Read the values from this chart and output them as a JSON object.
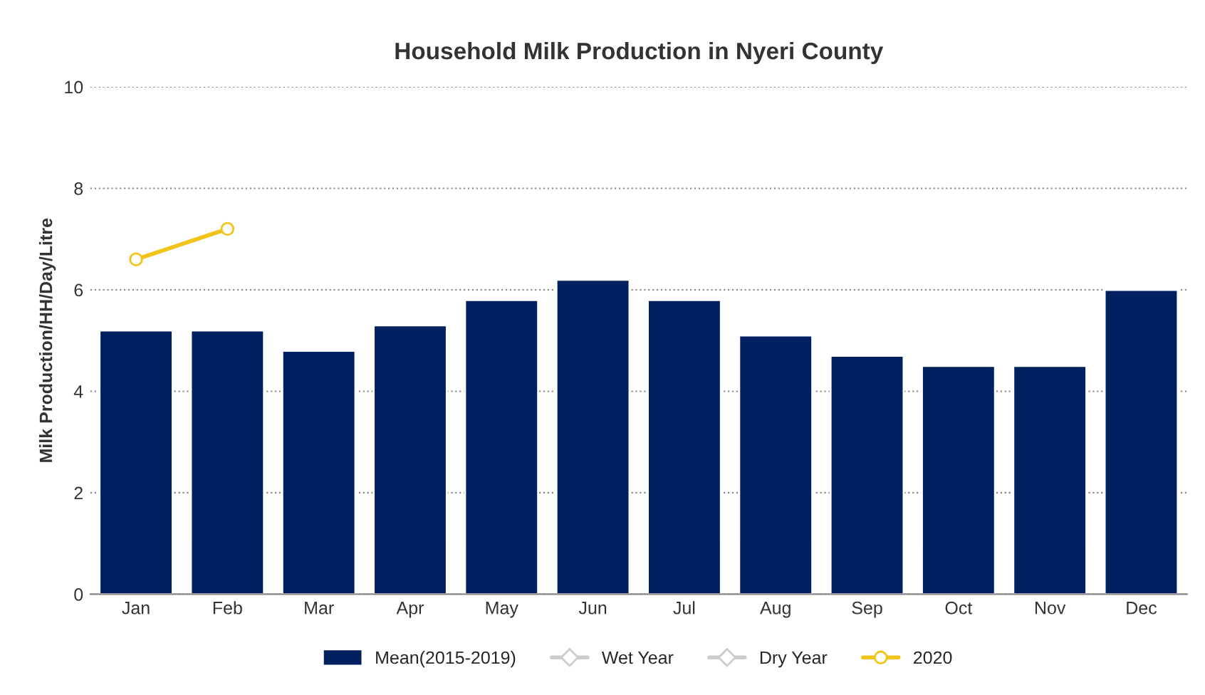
{
  "chart_data": {
    "type": "bar",
    "title": "Household Milk Production in Nyeri County",
    "ylabel": "Milk Production/HH/Day/Litre",
    "categories": [
      "Jan",
      "Feb",
      "Mar",
      "Apr",
      "May",
      "Jun",
      "Jul",
      "Aug",
      "Sep",
      "Oct",
      "Nov",
      "Dec"
    ],
    "series": [
      {
        "name": "Mean(2015-2019)",
        "color": "#002060",
        "values": [
          5.2,
          5.2,
          4.8,
          5.3,
          5.8,
          6.2,
          5.8,
          5.1,
          4.7,
          4.5,
          4.5,
          6.0
        ]
      },
      {
        "name": "Wet Year",
        "type": "line",
        "color": "#cccccc",
        "marker": "diamond",
        "values": [
          null,
          null,
          null,
          null,
          null,
          null,
          null,
          null,
          null,
          null,
          null,
          null
        ]
      },
      {
        "name": "Dry Year",
        "type": "line",
        "color": "#cccccc",
        "marker": "diamond",
        "values": [
          null,
          null,
          null,
          null,
          null,
          null,
          null,
          null,
          null,
          null,
          null,
          null
        ]
      },
      {
        "name": "2020",
        "type": "line",
        "color": "#f2c318",
        "marker": "circle",
        "values": [
          6.6,
          7.2,
          null,
          null,
          null,
          null,
          null,
          null,
          null,
          null,
          null,
          null
        ]
      }
    ],
    "ylim": [
      0,
      10
    ],
    "yticks": [
      0,
      2,
      4,
      6,
      8,
      10
    ],
    "grid": "y",
    "legend": "bottom"
  }
}
